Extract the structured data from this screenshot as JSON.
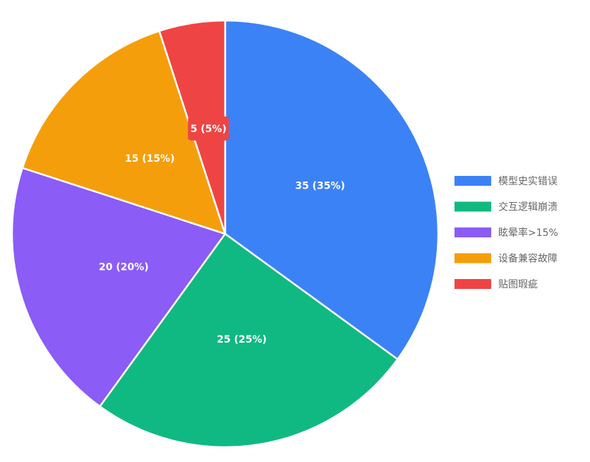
{
  "chart_data": {
    "type": "pie",
    "categories": [
      "模型史实错误",
      "交互逻辑崩溃",
      "眩晕率>15%",
      "设备兼容故障",
      "贴图瑕疵"
    ],
    "values": [
      35,
      25,
      20,
      15,
      5
    ],
    "data_labels": [
      "35 (35%)",
      "25 (25%)",
      "20 (20%)",
      "15 (15%)",
      "5 (5%)"
    ],
    "colors": [
      "#3B82F6",
      "#10B981",
      "#8B5CF6",
      "#F59E0B",
      "#EF4444"
    ],
    "start_angle": "top",
    "direction": "clockwise",
    "legend": {
      "position": "right"
    }
  }
}
